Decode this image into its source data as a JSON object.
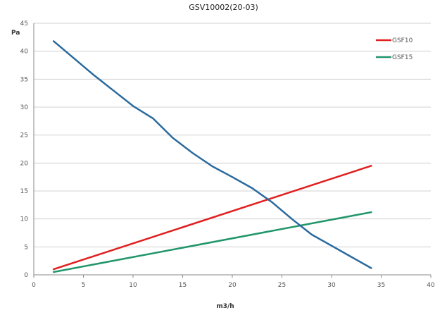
{
  "chart_data": {
    "type": "line",
    "title": "GSV10002(20-03)",
    "xlabel": "m3/h",
    "ylabel": "Pa",
    "xlim": [
      0,
      40
    ],
    "ylim": [
      0,
      45
    ],
    "x_ticks": [
      0,
      5,
      10,
      15,
      20,
      25,
      30,
      35,
      40
    ],
    "y_ticks": [
      0,
      5,
      10,
      15,
      20,
      25,
      30,
      35,
      40,
      45
    ],
    "grid": "horizontal",
    "legend_position": "top-right",
    "series": [
      {
        "name": "GSF10",
        "color": "#e02020",
        "x": [
          2,
          34
        ],
        "y": [
          1.0,
          19.5
        ]
      },
      {
        "name": "GSF15",
        "color": "#20966a",
        "x": [
          2,
          34
        ],
        "y": [
          0.5,
          11.2
        ]
      },
      {
        "name": "",
        "color": "#2a6a9e",
        "x": [
          2,
          4,
          6,
          8,
          10,
          12,
          14,
          16,
          18,
          20,
          22,
          24,
          26,
          28,
          30,
          32,
          34
        ],
        "y": [
          41.8,
          38.8,
          35.8,
          33.0,
          30.2,
          28.0,
          24.5,
          21.8,
          19.4,
          17.5,
          15.5,
          13.0,
          10.0,
          7.2,
          5.2,
          3.2,
          1.2
        ]
      }
    ]
  }
}
